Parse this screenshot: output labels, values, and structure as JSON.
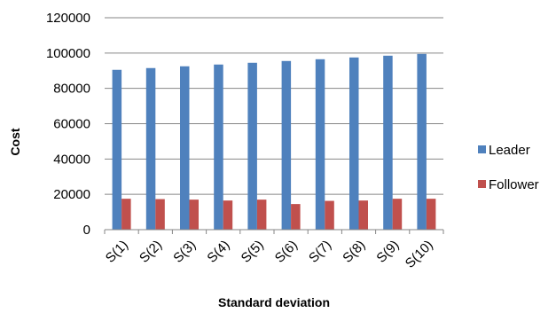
{
  "chart_data": {
    "type": "bar",
    "categories": [
      "S(1)",
      "S(2)",
      "S(3)",
      "S(4)",
      "S(5)",
      "S(6)",
      "S(7)",
      "S(8)",
      "S(9)",
      "S(10)"
    ],
    "series": [
      {
        "name": "Leader",
        "color": "#4F81BD",
        "values": [
          90500,
          91500,
          92500,
          93500,
          94500,
          95500,
          96500,
          97500,
          98500,
          99500
        ]
      },
      {
        "name": "Follower",
        "color": "#C0504D",
        "values": [
          17500,
          17300,
          17000,
          16500,
          17000,
          14500,
          16300,
          16500,
          17500,
          17500
        ]
      }
    ],
    "xlabel": "Standard deviation",
    "ylabel": "Cost",
    "ylim": [
      0,
      120000
    ],
    "yticks": [
      0,
      20000,
      40000,
      60000,
      80000,
      100000,
      120000
    ],
    "grid": true,
    "legend": "right"
  }
}
